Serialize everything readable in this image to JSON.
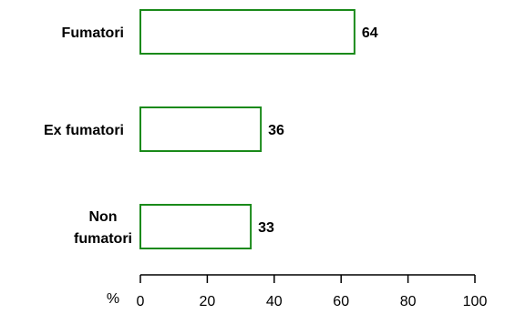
{
  "chart_data": {
    "type": "bar",
    "orientation": "horizontal",
    "categories": [
      [
        "Fumatori"
      ],
      [
        "Ex fumatori"
      ],
      [
        "Non",
        "fumatori"
      ]
    ],
    "values": [
      64,
      36,
      33
    ],
    "value_labels": [
      "64",
      "36",
      "33"
    ],
    "title": "",
    "xlabel": "",
    "ylabel": "",
    "x_unit": "%",
    "xlim": [
      0,
      100
    ],
    "x_ticks": [
      0,
      20,
      40,
      60,
      80,
      100
    ],
    "grid": false,
    "bar_color": "#1a8a1a",
    "bar_fill": "#ffffff"
  }
}
